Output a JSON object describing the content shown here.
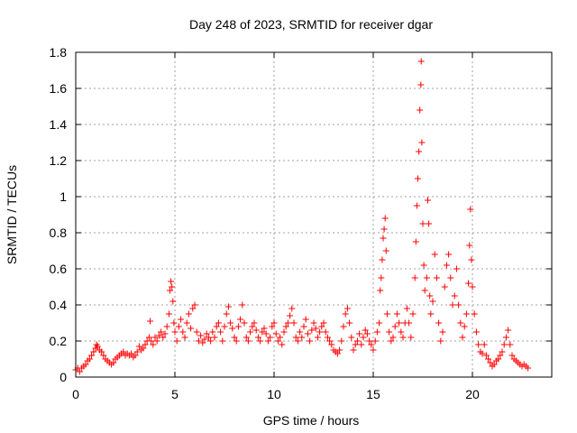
{
  "chart_data": {
    "type": "scatter",
    "title": "Day 248 of 2023, SRMTID for receiver dgar",
    "xlabel": "GPS time / hours",
    "ylabel": "SRMTID / TECUs",
    "xlim": [
      0,
      24
    ],
    "ylim": [
      0,
      1.8
    ],
    "xticks": [
      0,
      5,
      10,
      15,
      20
    ],
    "xtick_labels": [
      "0",
      "5",
      "10",
      "15",
      "20"
    ],
    "yticks": [
      0,
      0.2,
      0.4,
      0.6,
      0.8,
      1,
      1.2,
      1.4,
      1.6,
      1.8
    ],
    "ytick_labels": [
      "0",
      "0.2",
      "0.4",
      "0.6",
      "0.8",
      "1",
      "1.2",
      "1.4",
      "1.6",
      "1.8"
    ],
    "grid": true,
    "marker": "+",
    "series_color": "#ff0000",
    "series": [
      {
        "name": "SRMTID",
        "points": [
          [
            0.0,
            0.04
          ],
          [
            0.1,
            0.05
          ],
          [
            0.2,
            0.03
          ],
          [
            0.3,
            0.05
          ],
          [
            0.4,
            0.06
          ],
          [
            0.5,
            0.07
          ],
          [
            0.6,
            0.09
          ],
          [
            0.7,
            0.1
          ],
          [
            0.8,
            0.12
          ],
          [
            0.9,
            0.14
          ],
          [
            1.0,
            0.16
          ],
          [
            1.05,
            0.18
          ],
          [
            1.1,
            0.17
          ],
          [
            1.2,
            0.15
          ],
          [
            1.3,
            0.14
          ],
          [
            1.4,
            0.12
          ],
          [
            1.5,
            0.1
          ],
          [
            1.6,
            0.09
          ],
          [
            1.7,
            0.08
          ],
          [
            1.8,
            0.07
          ],
          [
            1.9,
            0.08
          ],
          [
            2.0,
            0.1
          ],
          [
            2.1,
            0.11
          ],
          [
            2.2,
            0.12
          ],
          [
            2.3,
            0.13
          ],
          [
            2.4,
            0.14
          ],
          [
            2.5,
            0.12
          ],
          [
            2.6,
            0.13
          ],
          [
            2.7,
            0.12
          ],
          [
            2.8,
            0.13
          ],
          [
            2.9,
            0.11
          ],
          [
            3.0,
            0.12
          ],
          [
            3.1,
            0.14
          ],
          [
            3.2,
            0.17
          ],
          [
            3.3,
            0.15
          ],
          [
            3.4,
            0.16
          ],
          [
            3.5,
            0.18
          ],
          [
            3.6,
            0.2
          ],
          [
            3.7,
            0.22
          ],
          [
            3.75,
            0.31
          ],
          [
            3.8,
            0.2
          ],
          [
            3.9,
            0.18
          ],
          [
            4.0,
            0.22
          ],
          [
            4.1,
            0.2
          ],
          [
            4.2,
            0.23
          ],
          [
            4.3,
            0.25
          ],
          [
            4.4,
            0.22
          ],
          [
            4.5,
            0.24
          ],
          [
            4.6,
            0.28
          ],
          [
            4.7,
            0.35
          ],
          [
            4.75,
            0.48
          ],
          [
            4.8,
            0.53
          ],
          [
            4.85,
            0.5
          ],
          [
            4.9,
            0.42
          ],
          [
            4.95,
            0.3
          ],
          [
            5.0,
            0.25
          ],
          [
            5.1,
            0.2
          ],
          [
            5.2,
            0.28
          ],
          [
            5.3,
            0.32
          ],
          [
            5.4,
            0.25
          ],
          [
            5.5,
            0.22
          ],
          [
            5.6,
            0.3
          ],
          [
            5.7,
            0.35
          ],
          [
            5.8,
            0.27
          ],
          [
            5.9,
            0.38
          ],
          [
            6.0,
            0.4
          ],
          [
            6.1,
            0.25
          ],
          [
            6.2,
            0.2
          ],
          [
            6.3,
            0.23
          ],
          [
            6.4,
            0.19
          ],
          [
            6.5,
            0.21
          ],
          [
            6.6,
            0.24
          ],
          [
            6.7,
            0.22
          ],
          [
            6.8,
            0.2
          ],
          [
            6.9,
            0.25
          ],
          [
            7.0,
            0.22
          ],
          [
            7.1,
            0.28
          ],
          [
            7.2,
            0.3
          ],
          [
            7.3,
            0.25
          ],
          [
            7.4,
            0.2
          ],
          [
            7.5,
            0.28
          ],
          [
            7.6,
            0.35
          ],
          [
            7.7,
            0.39
          ],
          [
            7.8,
            0.3
          ],
          [
            7.9,
            0.27
          ],
          [
            8.0,
            0.22
          ],
          [
            8.1,
            0.2
          ],
          [
            8.2,
            0.28
          ],
          [
            8.3,
            0.32
          ],
          [
            8.4,
            0.4
          ],
          [
            8.5,
            0.3
          ],
          [
            8.6,
            0.22
          ],
          [
            8.7,
            0.2
          ],
          [
            8.8,
            0.25
          ],
          [
            8.9,
            0.28
          ],
          [
            9.0,
            0.3
          ],
          [
            9.1,
            0.26
          ],
          [
            9.2,
            0.22
          ],
          [
            9.3,
            0.2
          ],
          [
            9.4,
            0.25
          ],
          [
            9.5,
            0.27
          ],
          [
            9.6,
            0.24
          ],
          [
            9.7,
            0.2
          ],
          [
            9.8,
            0.22
          ],
          [
            9.9,
            0.28
          ],
          [
            10.0,
            0.3
          ],
          [
            10.1,
            0.24
          ],
          [
            10.2,
            0.2
          ],
          [
            10.3,
            0.22
          ],
          [
            10.4,
            0.18
          ],
          [
            10.5,
            0.25
          ],
          [
            10.6,
            0.28
          ],
          [
            10.7,
            0.3
          ],
          [
            10.8,
            0.34
          ],
          [
            10.9,
            0.38
          ],
          [
            11.0,
            0.3
          ],
          [
            11.1,
            0.22
          ],
          [
            11.2,
            0.2
          ],
          [
            11.3,
            0.25
          ],
          [
            11.4,
            0.22
          ],
          [
            11.5,
            0.28
          ],
          [
            11.6,
            0.32
          ],
          [
            11.7,
            0.24
          ],
          [
            11.8,
            0.2
          ],
          [
            11.9,
            0.26
          ],
          [
            12.0,
            0.3
          ],
          [
            12.1,
            0.27
          ],
          [
            12.2,
            0.22
          ],
          [
            12.3,
            0.25
          ],
          [
            12.4,
            0.28
          ],
          [
            12.5,
            0.3
          ],
          [
            12.6,
            0.25
          ],
          [
            12.7,
            0.22
          ],
          [
            12.8,
            0.2
          ],
          [
            12.9,
            0.18
          ],
          [
            13.0,
            0.15
          ],
          [
            13.1,
            0.14
          ],
          [
            13.2,
            0.13
          ],
          [
            13.3,
            0.15
          ],
          [
            13.4,
            0.2
          ],
          [
            13.5,
            0.28
          ],
          [
            13.6,
            0.35
          ],
          [
            13.7,
            0.38
          ],
          [
            13.8,
            0.3
          ],
          [
            13.9,
            0.22
          ],
          [
            14.0,
            0.15
          ],
          [
            14.1,
            0.18
          ],
          [
            14.2,
            0.2
          ],
          [
            14.3,
            0.24
          ],
          [
            14.4,
            0.18
          ],
          [
            14.5,
            0.22
          ],
          [
            14.6,
            0.26
          ],
          [
            14.7,
            0.24
          ],
          [
            14.8,
            0.2
          ],
          [
            14.9,
            0.18
          ],
          [
            15.0,
            0.15
          ],
          [
            15.1,
            0.2
          ],
          [
            15.2,
            0.25
          ],
          [
            15.3,
            0.3
          ],
          [
            15.35,
            0.48
          ],
          [
            15.4,
            0.55
          ],
          [
            15.45,
            0.65
          ],
          [
            15.5,
            0.77
          ],
          [
            15.55,
            0.82
          ],
          [
            15.6,
            0.88
          ],
          [
            15.65,
            0.7
          ],
          [
            15.7,
            0.35
          ],
          [
            15.8,
            0.25
          ],
          [
            15.9,
            0.2
          ],
          [
            16.0,
            0.22
          ],
          [
            16.1,
            0.28
          ],
          [
            16.2,
            0.35
          ],
          [
            16.3,
            0.3
          ],
          [
            16.4,
            0.25
          ],
          [
            16.5,
            0.22
          ],
          [
            16.6,
            0.3
          ],
          [
            16.7,
            0.38
          ],
          [
            16.8,
            0.3
          ],
          [
            16.9,
            0.22
          ],
          [
            17.0,
            0.35
          ],
          [
            17.1,
            0.55
          ],
          [
            17.15,
            0.75
          ],
          [
            17.2,
            0.95
          ],
          [
            17.25,
            1.1
          ],
          [
            17.3,
            1.25
          ],
          [
            17.35,
            1.48
          ],
          [
            17.4,
            1.62
          ],
          [
            17.42,
            1.75
          ],
          [
            17.45,
            1.3
          ],
          [
            17.5,
            0.85
          ],
          [
            17.55,
            0.62
          ],
          [
            17.6,
            0.48
          ],
          [
            17.7,
            0.55
          ],
          [
            17.75,
            0.98
          ],
          [
            17.8,
            0.85
          ],
          [
            17.85,
            0.45
          ],
          [
            17.9,
            0.35
          ],
          [
            18.0,
            0.42
          ],
          [
            18.1,
            0.68
          ],
          [
            18.2,
            0.55
          ],
          [
            18.3,
            0.3
          ],
          [
            18.4,
            0.2
          ],
          [
            18.5,
            0.25
          ],
          [
            18.6,
            0.5
          ],
          [
            18.7,
            0.62
          ],
          [
            18.8,
            0.68
          ],
          [
            18.9,
            0.55
          ],
          [
            19.0,
            0.4
          ],
          [
            19.1,
            0.45
          ],
          [
            19.2,
            0.6
          ],
          [
            19.3,
            0.4
          ],
          [
            19.4,
            0.3
          ],
          [
            19.5,
            0.22
          ],
          [
            19.6,
            0.28
          ],
          [
            19.7,
            0.35
          ],
          [
            19.8,
            0.52
          ],
          [
            19.85,
            0.73
          ],
          [
            19.9,
            0.93
          ],
          [
            19.95,
            0.65
          ],
          [
            20.0,
            0.5
          ],
          [
            20.1,
            0.35
          ],
          [
            20.2,
            0.25
          ],
          [
            20.3,
            0.18
          ],
          [
            20.4,
            0.14
          ],
          [
            20.5,
            0.13
          ],
          [
            20.6,
            0.18
          ],
          [
            20.7,
            0.12
          ],
          [
            20.8,
            0.1
          ],
          [
            20.9,
            0.08
          ],
          [
            21.0,
            0.06
          ],
          [
            21.1,
            0.07
          ],
          [
            21.2,
            0.09
          ],
          [
            21.3,
            0.1
          ],
          [
            21.4,
            0.12
          ],
          [
            21.5,
            0.14
          ],
          [
            21.6,
            0.18
          ],
          [
            21.7,
            0.22
          ],
          [
            21.8,
            0.26
          ],
          [
            21.9,
            0.18
          ],
          [
            22.0,
            0.12
          ],
          [
            22.1,
            0.1
          ],
          [
            22.2,
            0.09
          ],
          [
            22.3,
            0.08
          ],
          [
            22.4,
            0.07
          ],
          [
            22.5,
            0.06
          ],
          [
            22.6,
            0.07
          ],
          [
            22.7,
            0.06
          ],
          [
            22.8,
            0.05
          ]
        ]
      }
    ]
  }
}
